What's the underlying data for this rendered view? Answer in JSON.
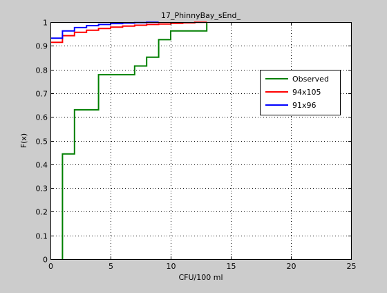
{
  "chart_data": {
    "type": "line",
    "title": "17_PhinnyBay_sEnd_",
    "xlabel": "CFU/100 ml",
    "ylabel": "F(x)",
    "xlim": [
      0,
      25
    ],
    "ylim": [
      0,
      1
    ],
    "xticks": [
      0,
      5,
      10,
      15,
      20,
      25
    ],
    "yticks": [
      0,
      0.1,
      0.2,
      0.3,
      0.4,
      0.5,
      0.6,
      0.7,
      0.8,
      0.9,
      1
    ],
    "xtick_labels": [
      "0",
      "5",
      "10",
      "15",
      "20",
      "25"
    ],
    "ytick_labels": [
      "0",
      "0.1",
      "0.2",
      "0.3",
      "0.4",
      "0.5",
      "0.6",
      "0.7",
      "0.8",
      "0.9",
      "1"
    ],
    "grid": true,
    "legend_position": "upper-right",
    "series": [
      {
        "name": "Observed",
        "color": "#007f00",
        "step": true,
        "points": [
          [
            1,
            0
          ],
          [
            1,
            0.444
          ],
          [
            2,
            0.444
          ],
          [
            2,
            0.63
          ],
          [
            4,
            0.63
          ],
          [
            4,
            0.778
          ],
          [
            7,
            0.778
          ],
          [
            7,
            0.815
          ],
          [
            8,
            0.815
          ],
          [
            8,
            0.852
          ],
          [
            9,
            0.852
          ],
          [
            9,
            0.926
          ],
          [
            10,
            0.926
          ],
          [
            10,
            0.963
          ],
          [
            13,
            0.963
          ],
          [
            13,
            1.0
          ]
        ]
      },
      {
        "name": "94x105",
        "color": "#ff0000",
        "step": true,
        "points": [
          [
            0,
            0.915
          ],
          [
            1,
            0.915
          ],
          [
            1,
            0.943
          ],
          [
            2,
            0.943
          ],
          [
            2,
            0.957
          ],
          [
            3,
            0.957
          ],
          [
            3,
            0.966
          ],
          [
            4,
            0.966
          ],
          [
            4,
            0.973
          ],
          [
            5,
            0.973
          ],
          [
            5,
            0.979
          ],
          [
            6,
            0.979
          ],
          [
            6,
            0.983
          ],
          [
            7,
            0.983
          ],
          [
            7,
            0.987
          ],
          [
            8,
            0.987
          ],
          [
            8,
            0.99
          ],
          [
            9,
            0.99
          ],
          [
            9,
            0.992
          ],
          [
            10,
            0.992
          ],
          [
            10,
            0.995
          ],
          [
            11,
            0.995
          ],
          [
            11,
            0.997
          ],
          [
            12,
            0.997
          ],
          [
            12,
            0.999
          ],
          [
            13,
            0.999
          ],
          [
            13,
            1.0
          ]
        ]
      },
      {
        "name": "91x96",
        "color": "#0000ff",
        "step": true,
        "points": [
          [
            0,
            0.932
          ],
          [
            1,
            0.932
          ],
          [
            1,
            0.963
          ],
          [
            2,
            0.963
          ],
          [
            2,
            0.977
          ],
          [
            3,
            0.977
          ],
          [
            3,
            0.985
          ],
          [
            4,
            0.985
          ],
          [
            4,
            0.99
          ],
          [
            5,
            0.99
          ],
          [
            5,
            0.994
          ],
          [
            6,
            0.994
          ],
          [
            6,
            0.996
          ],
          [
            7,
            0.996
          ],
          [
            7,
            0.998
          ],
          [
            8,
            0.998
          ],
          [
            8,
            0.999
          ],
          [
            9,
            0.999
          ],
          [
            9,
            1.0
          ]
        ]
      }
    ]
  }
}
